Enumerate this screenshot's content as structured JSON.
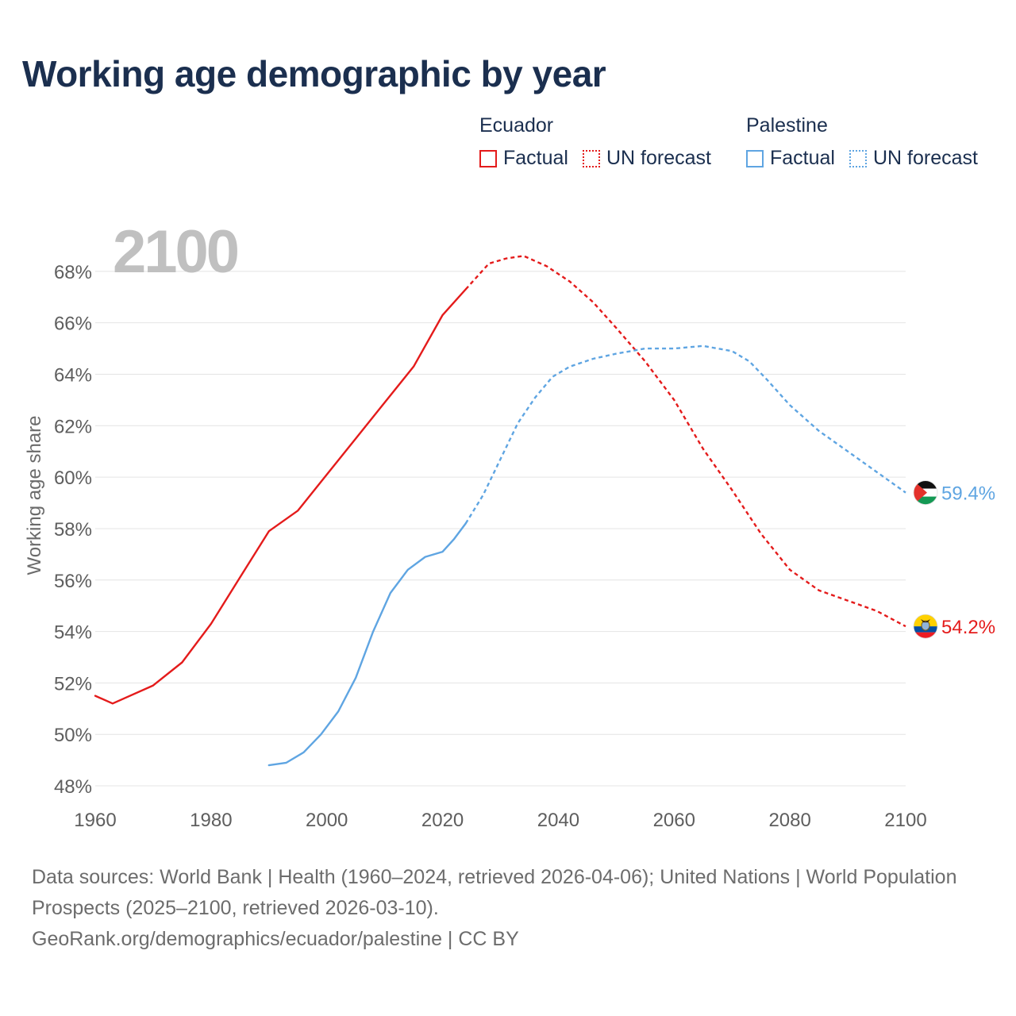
{
  "title": "Working age demographic by year",
  "legend": {
    "groups": [
      {
        "country": "Ecuador",
        "factual_label": "Factual",
        "forecast_label": "UN forecast",
        "color": "#e41b1b"
      },
      {
        "country": "Palestine",
        "factual_label": "Factual",
        "forecast_label": "UN forecast",
        "color": "#5fa5e2"
      }
    ]
  },
  "footer": {
    "sources_line": "Data sources: World Bank | Health (1960–2024, retrieved 2026-04-06); United Nations | World Population Prospects (2025–2100, retrieved 2026-03-10).",
    "url_line": "GeoRank.org/demographics/ecuador/palestine | CC BY"
  },
  "chart_data": {
    "type": "line",
    "title": "Working age demographic by year",
    "year_overlay": "2100",
    "xlabel": "",
    "ylabel": "Working age share",
    "xlim": [
      1960,
      2100
    ],
    "ylim": [
      47.6,
      69.6
    ],
    "x_ticks": [
      "1960",
      "1980",
      "2000",
      "2020",
      "2040",
      "2060",
      "2080",
      "2100"
    ],
    "x_tick_values": [
      1960,
      1980,
      2000,
      2020,
      2040,
      2060,
      2080,
      2100
    ],
    "y_ticks": [
      "48%",
      "50%",
      "52%",
      "54%",
      "56%",
      "58%",
      "60%",
      "62%",
      "64%",
      "66%",
      "68%"
    ],
    "y_tick_values": [
      48,
      50,
      52,
      54,
      56,
      58,
      60,
      62,
      64,
      66,
      68
    ],
    "grid": true,
    "series": [
      {
        "name": "Ecuador",
        "color": "#e41b1b",
        "factual_end_year": 2024,
        "end_label": "54.2%",
        "flag_icon": "ecuador-flag-icon",
        "points": [
          [
            1960,
            51.5
          ],
          [
            1963,
            51.2
          ],
          [
            1965,
            51.4
          ],
          [
            1970,
            51.9
          ],
          [
            1975,
            52.8
          ],
          [
            1980,
            54.3
          ],
          [
            1985,
            56.1
          ],
          [
            1990,
            57.9
          ],
          [
            1995,
            58.7
          ],
          [
            2000,
            60.1
          ],
          [
            2005,
            61.5
          ],
          [
            2010,
            62.9
          ],
          [
            2015,
            64.3
          ],
          [
            2020,
            66.3
          ],
          [
            2024,
            67.3
          ],
          [
            2028,
            68.3
          ],
          [
            2031,
            68.5
          ],
          [
            2034,
            68.6
          ],
          [
            2038,
            68.2
          ],
          [
            2042,
            67.6
          ],
          [
            2046,
            66.8
          ],
          [
            2050,
            65.8
          ],
          [
            2055,
            64.5
          ],
          [
            2060,
            63.0
          ],
          [
            2065,
            61.1
          ],
          [
            2070,
            59.5
          ],
          [
            2075,
            57.8
          ],
          [
            2080,
            56.4
          ],
          [
            2085,
            55.6
          ],
          [
            2090,
            55.2
          ],
          [
            2095,
            54.8
          ],
          [
            2100,
            54.2
          ]
        ]
      },
      {
        "name": "Palestine",
        "color": "#5fa5e2",
        "factual_end_year": 2024,
        "end_label": "59.4%",
        "flag_icon": "palestine-flag-icon",
        "points": [
          [
            1990,
            48.8
          ],
          [
            1993,
            48.9
          ],
          [
            1996,
            49.3
          ],
          [
            1999,
            50.0
          ],
          [
            2002,
            50.9
          ],
          [
            2005,
            52.2
          ],
          [
            2008,
            54.0
          ],
          [
            2011,
            55.5
          ],
          [
            2014,
            56.4
          ],
          [
            2017,
            56.9
          ],
          [
            2020,
            57.1
          ],
          [
            2022,
            57.6
          ],
          [
            2024,
            58.2
          ],
          [
            2027,
            59.3
          ],
          [
            2030,
            60.7
          ],
          [
            2033,
            62.1
          ],
          [
            2036,
            63.1
          ],
          [
            2039,
            63.9
          ],
          [
            2042,
            64.3
          ],
          [
            2046,
            64.6
          ],
          [
            2050,
            64.8
          ],
          [
            2055,
            65.0
          ],
          [
            2060,
            65.0
          ],
          [
            2065,
            65.1
          ],
          [
            2070,
            64.9
          ],
          [
            2073,
            64.5
          ],
          [
            2076,
            63.8
          ],
          [
            2080,
            62.8
          ],
          [
            2085,
            61.8
          ],
          [
            2090,
            61.0
          ],
          [
            2095,
            60.2
          ],
          [
            2100,
            59.4
          ]
        ]
      }
    ]
  }
}
